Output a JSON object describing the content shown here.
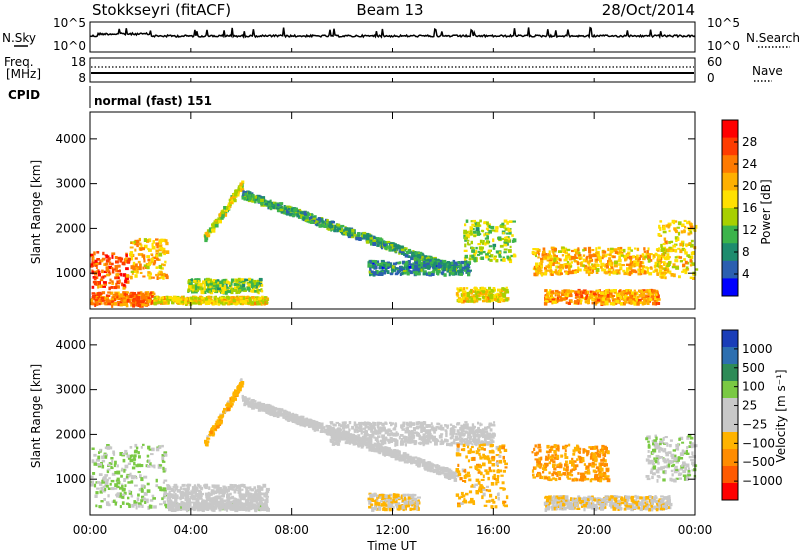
{
  "header": {
    "station": "Stokkseyri (fitACF)",
    "beam": "Beam 13",
    "date": "28/Oct/2014"
  },
  "panels": {
    "nsky_label": "N.Sky",
    "nsearch_label": "N.Search",
    "nsky_ticks": [
      "10^5",
      "10^0"
    ],
    "nsearch_ticks": [
      "10^5",
      "10^0"
    ],
    "freq_label": "Freq.",
    "freq_unit": "[MHz]",
    "freq_ticks": [
      "18",
      "8"
    ],
    "nave_label": "Nave",
    "nave_ticks": [
      "60",
      "0"
    ],
    "cpid_label": "CPID",
    "cpid_text": "normal (fast) 151"
  },
  "axes": {
    "y_label": "Slant Range [km]",
    "y_ticks": [
      1000,
      2000,
      3000,
      4000
    ],
    "y_range": [
      200,
      4600
    ],
    "x_label": "Time UT",
    "x_ticks": [
      "00:00",
      "04:00",
      "08:00",
      "12:00",
      "16:00",
      "20:00",
      "00:00"
    ],
    "x_range_hours": [
      0,
      24
    ]
  },
  "colorbars": {
    "power": {
      "label": "Power [dB]",
      "ticks": [
        "28",
        "24",
        "20",
        "16",
        "12",
        "8",
        "4"
      ],
      "colors": [
        "#ff0000",
        "#ff3c00",
        "#ff7a00",
        "#ffb000",
        "#ffe000",
        "#a8d000",
        "#3cb44b",
        "#1e8c6e",
        "#2b5fb0",
        "#0000ff"
      ]
    },
    "velocity": {
      "label": "Velocity [m s⁻¹]",
      "ticks": [
        "1000",
        "500",
        "100",
        "25",
        "−25",
        "−100",
        "−500",
        "−1000"
      ],
      "colors": [
        "#1a3db8",
        "#2d6fb0",
        "#2e8b57",
        "#7ac943",
        "#c8c8c8",
        "#c8c8c8",
        "#ffb300",
        "#ff8c00",
        "#ff5a00",
        "#ff0000"
      ]
    }
  },
  "chart_data": [
    {
      "type": "heatmap",
      "name": "power",
      "xlabel": "Time UT",
      "ylabel": "Slant Range [km]",
      "xlim": [
        0,
        24
      ],
      "ylim": [
        200,
        4600
      ],
      "zlabel": "Power [dB]",
      "zlim": [
        0,
        32
      ],
      "features": [
        {
          "kind": "patch",
          "t": [
            0,
            1.5
          ],
          "range": [
            700,
            1500
          ],
          "value": 26
        },
        {
          "kind": "patch",
          "t": [
            0,
            2.5
          ],
          "range": [
            300,
            600
          ],
          "value": 24
        },
        {
          "kind": "patch",
          "t": [
            1.5,
            3.0
          ],
          "range": [
            900,
            1800
          ],
          "value": 20
        },
        {
          "kind": "patch",
          "t": [
            2.5,
            7.0
          ],
          "range": [
            350,
            500
          ],
          "value": 18
        },
        {
          "kind": "patch",
          "t": [
            3.8,
            6.8
          ],
          "range": [
            600,
            900
          ],
          "value": 14
        },
        {
          "kind": "track",
          "t": [
            4.5,
            6.0
          ],
          "range": [
            1800,
            3000
          ],
          "value": 16
        },
        {
          "kind": "track",
          "t": [
            6.0,
            14.5
          ],
          "range": [
            2800,
            1100
          ],
          "value": 10
        },
        {
          "kind": "patch",
          "t": [
            11.0,
            15.0
          ],
          "range": [
            1000,
            1300
          ],
          "value": 8
        },
        {
          "kind": "patch",
          "t": [
            14.8,
            16.8
          ],
          "range": [
            1300,
            2200
          ],
          "value": 14
        },
        {
          "kind": "patch",
          "t": [
            14.5,
            16.5
          ],
          "range": [
            400,
            700
          ],
          "value": 18
        },
        {
          "kind": "patch",
          "t": [
            17.5,
            23.0
          ],
          "range": [
            1000,
            1600
          ],
          "value": 20
        },
        {
          "kind": "patch",
          "t": [
            18.0,
            22.5
          ],
          "range": [
            350,
            650
          ],
          "value": 22
        },
        {
          "kind": "patch",
          "t": [
            22.5,
            24.0
          ],
          "range": [
            900,
            2200
          ],
          "value": 18
        }
      ]
    },
    {
      "type": "heatmap",
      "name": "velocity",
      "xlabel": "Time UT",
      "ylabel": "Slant Range [km]",
      "xlim": [
        0,
        24
      ],
      "ylim": [
        200,
        4600
      ],
      "zlabel": "Velocity [m s-1]",
      "zlim": [
        -1000,
        1000
      ],
      "features": [
        {
          "kind": "patch",
          "t": [
            0,
            3.0
          ],
          "range": [
            400,
            1800
          ],
          "value": 200
        },
        {
          "kind": "patch",
          "t": [
            3.0,
            7.0
          ],
          "range": [
            500,
            900
          ],
          "value": 60
        },
        {
          "kind": "patch",
          "t": [
            3.0,
            7.0
          ],
          "range": [
            350,
            500
          ],
          "value": 80
        },
        {
          "kind": "track",
          "t": [
            4.5,
            6.0
          ],
          "range": [
            1800,
            3200
          ],
          "value": -300
        },
        {
          "kind": "track",
          "t": [
            6.0,
            14.5
          ],
          "range": [
            2800,
            1100
          ],
          "value": 0
        },
        {
          "kind": "patch",
          "t": [
            9.5,
            16.0
          ],
          "range": [
            1800,
            2300
          ],
          "value": 0
        },
        {
          "kind": "patch",
          "t": [
            11.0,
            13.0
          ],
          "range": [
            350,
            700
          ],
          "value": -200
        },
        {
          "kind": "patch",
          "t": [
            14.5,
            16.5
          ],
          "range": [
            400,
            1800
          ],
          "value": -300
        },
        {
          "kind": "patch",
          "t": [
            17.5,
            20.5
          ],
          "range": [
            1000,
            1800
          ],
          "value": -400
        },
        {
          "kind": "patch",
          "t": [
            18.0,
            23.0
          ],
          "range": [
            350,
            650
          ],
          "value": -150
        },
        {
          "kind": "patch",
          "t": [
            22.0,
            24.0
          ],
          "range": [
            1000,
            2000
          ],
          "value": 150
        }
      ]
    }
  ]
}
